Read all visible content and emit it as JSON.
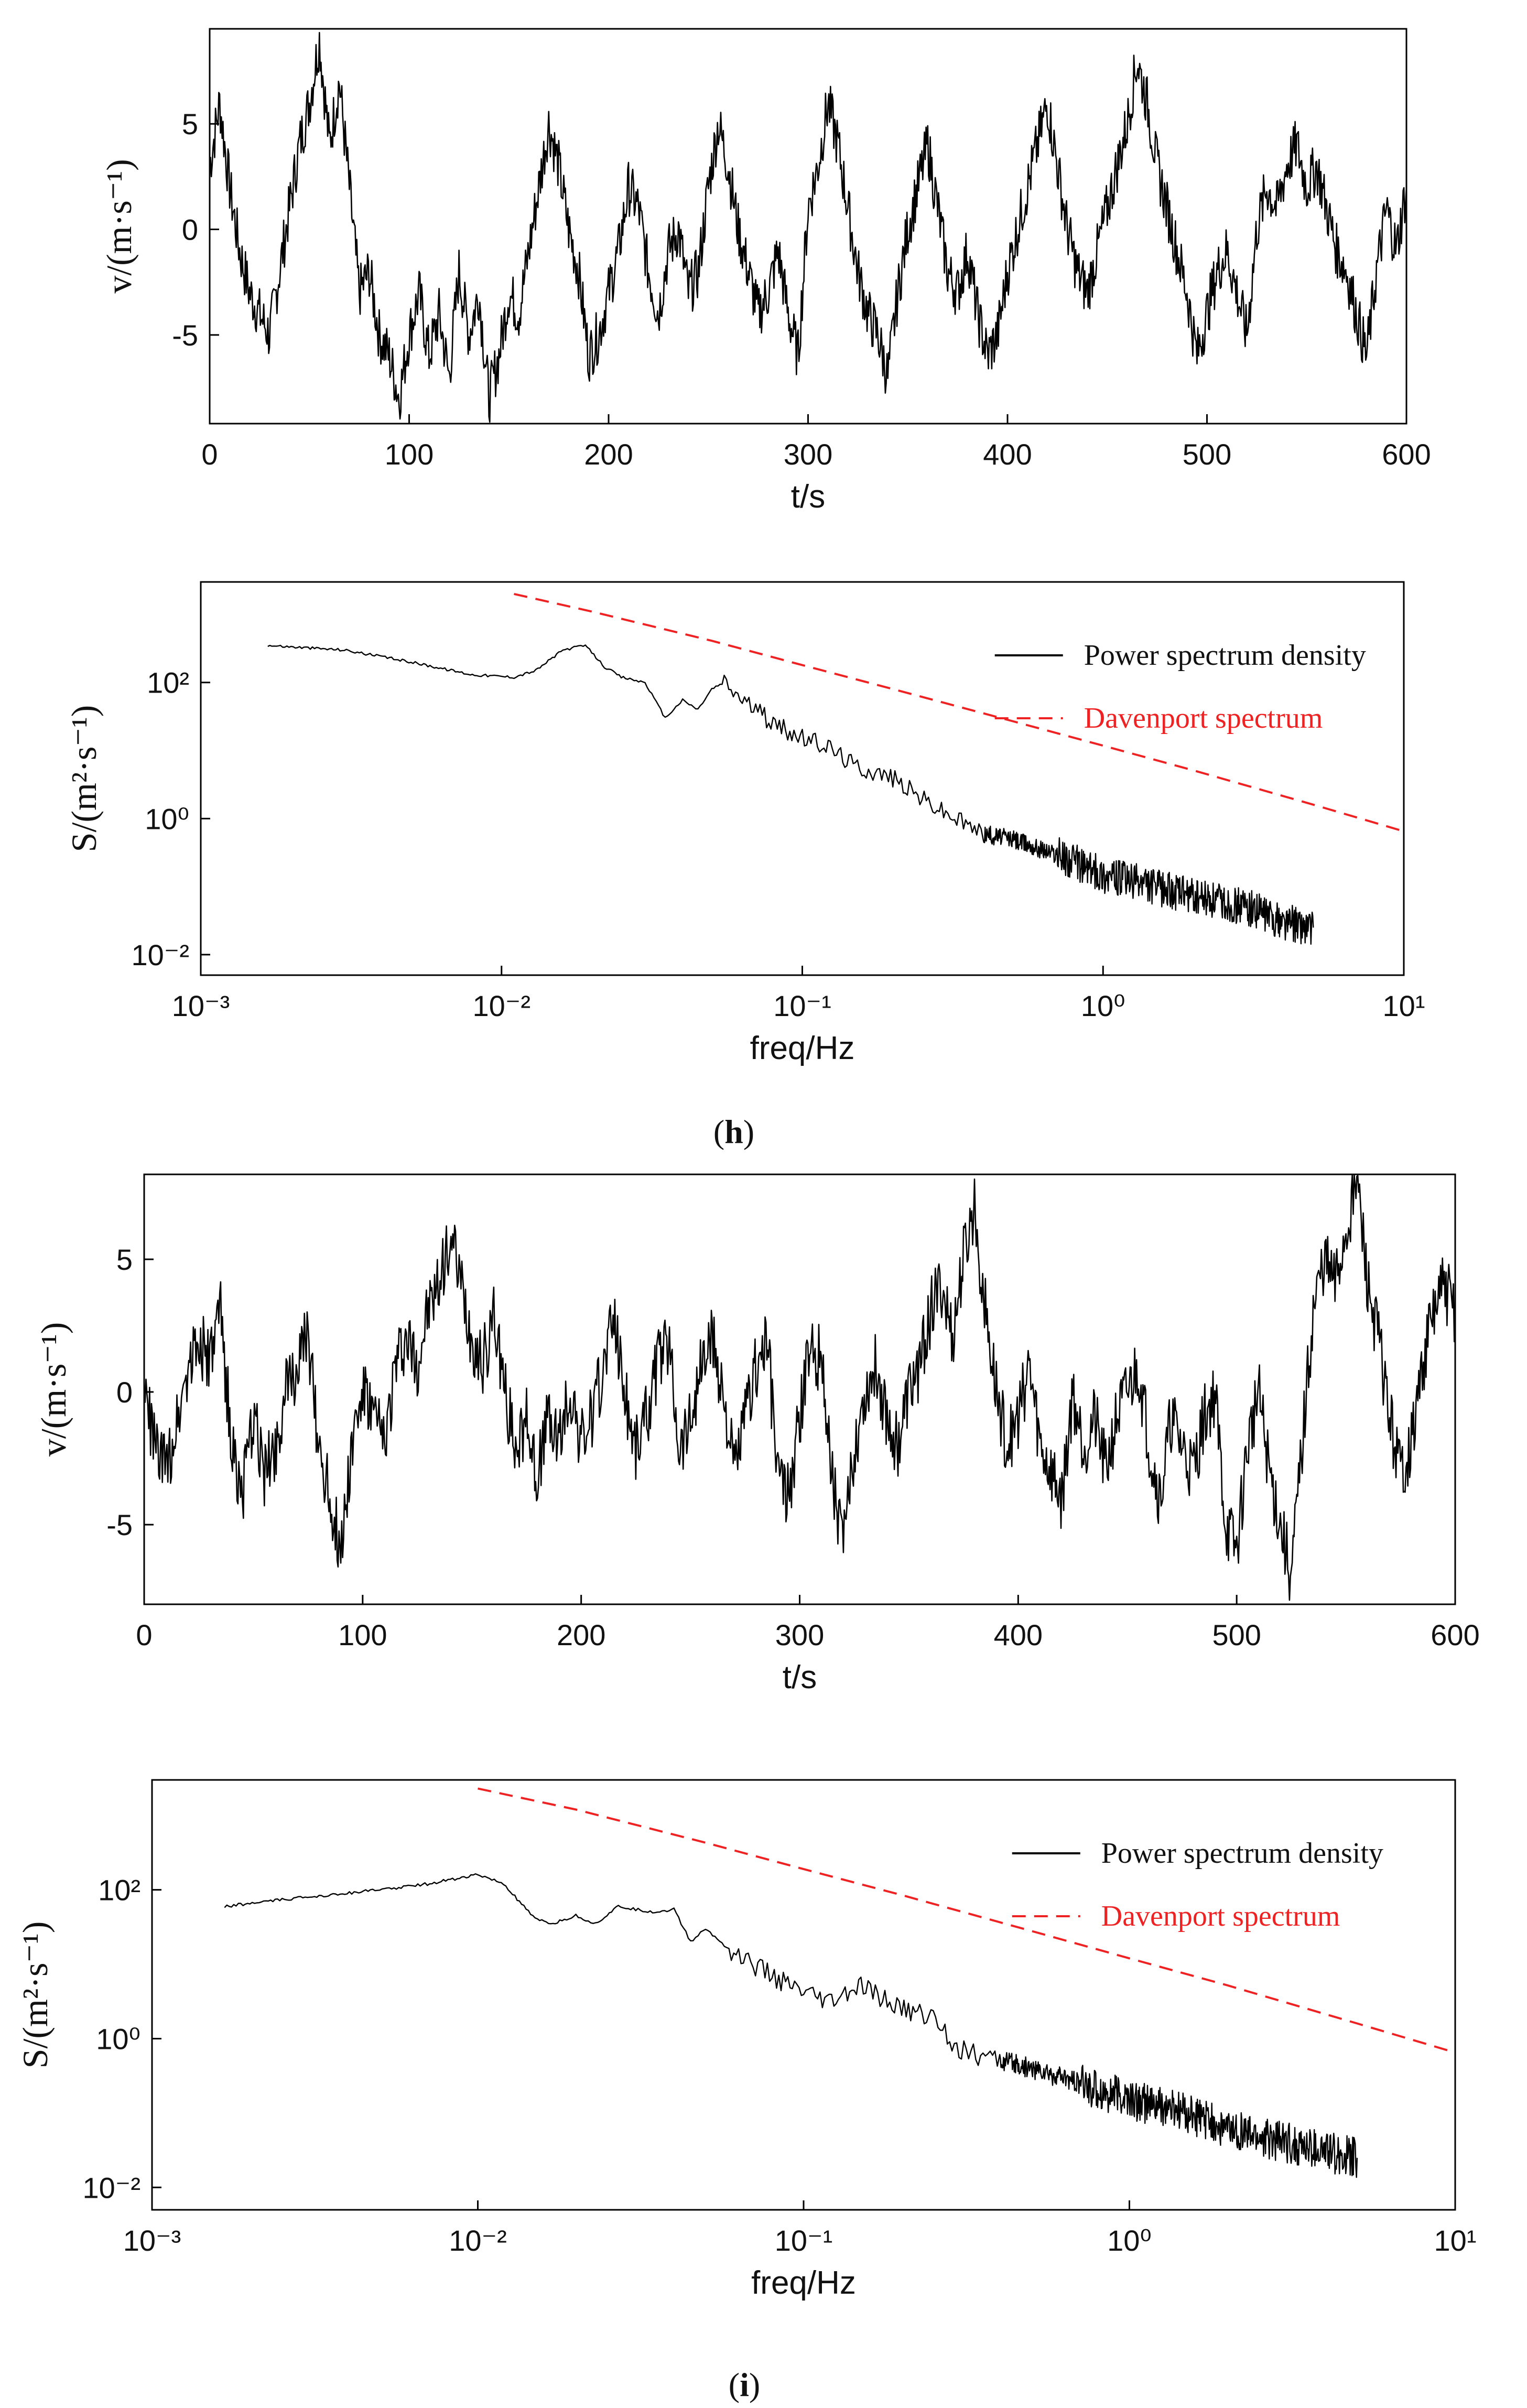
{
  "chart_data": [
    {
      "panel": "h",
      "type": "line",
      "xlabel": "t/s",
      "ylabel": "v/(m·s⁻¹)",
      "xlim": [
        0,
        600
      ],
      "ylim": [
        -9.2,
        9.5
      ],
      "xticks": [
        0,
        100,
        200,
        300,
        400,
        500,
        600
      ],
      "yticks": [
        -5,
        0,
        5
      ],
      "series": [
        {
          "color": "#000000",
          "x": [
            0,
            5,
            10,
            15,
            20,
            25,
            30,
            35,
            40,
            45,
            50,
            55,
            60,
            65,
            70,
            75,
            80,
            85,
            90,
            95,
            100,
            105,
            110,
            115,
            120,
            125,
            130,
            135,
            140,
            145,
            150,
            155,
            160,
            165,
            170,
            175,
            180,
            185,
            190,
            195,
            200,
            205,
            210,
            215,
            220,
            225,
            230,
            235,
            240,
            245,
            250,
            255,
            260,
            265,
            270,
            275,
            280,
            285,
            290,
            295,
            300,
            305,
            310,
            315,
            320,
            325,
            330,
            335,
            340,
            345,
            350,
            355,
            360,
            365,
            370,
            375,
            380,
            385,
            390,
            395,
            400,
            405,
            410,
            415,
            420,
            425,
            430,
            435,
            440,
            445,
            450,
            455,
            460,
            465,
            470,
            475,
            480,
            485,
            490,
            495,
            500,
            505,
            510,
            515,
            520,
            525,
            530,
            535,
            540,
            545,
            550,
            555,
            560,
            565,
            570,
            575,
            580,
            585,
            590,
            595,
            600
          ],
          "y": [
            3,
            6,
            2,
            -1,
            -3,
            -4,
            -5,
            -2,
            1,
            4,
            6,
            9,
            4,
            7,
            2,
            -3,
            -2,
            -5,
            -6,
            -8,
            -5,
            -3,
            -6,
            -4,
            -7,
            -2,
            -5,
            -3,
            -8,
            -6,
            -3,
            -4,
            -1,
            2,
            5,
            3,
            0,
            -2,
            -6,
            -5,
            -3,
            -1,
            2,
            1,
            -2,
            -4,
            -1,
            0,
            -3,
            -2,
            2,
            5,
            3,
            0,
            -2,
            -4,
            -3,
            -1,
            -4,
            -6,
            1,
            3,
            6,
            4,
            1,
            -2,
            -4,
            -5,
            -7,
            -3,
            0,
            2,
            4,
            1,
            -2,
            -3,
            -1,
            -4,
            -6,
            -5,
            -2,
            0,
            2,
            4,
            6,
            3,
            0,
            -2,
            -3,
            -1,
            1,
            3,
            5,
            8,
            6,
            3,
            1,
            -1,
            -3,
            -6,
            -4,
            -2,
            -1,
            -3,
            -5,
            0,
            2,
            1,
            3,
            4,
            2,
            3,
            1,
            -1,
            -2,
            -4,
            -6,
            -2,
            1,
            -1,
            2
          ]
        }
      ]
    },
    {
      "panel": "h",
      "type": "line",
      "xlabel": "freq/Hz",
      "ylabel": "S/(m²·s⁻¹)",
      "xscale": "log",
      "yscale": "log",
      "xlim": [
        0.001,
        10
      ],
      "ylim": [
        0.005,
        3000
      ],
      "xticks": [
        "10⁻³",
        "10⁻²",
        "10⁻¹",
        "10⁰",
        "10¹"
      ],
      "yticks": [
        "10⁻²",
        "10⁰",
        "10²"
      ],
      "legend": "top-right",
      "series": [
        {
          "name": "Power spectrum density",
          "color": "#000000",
          "style": "solid",
          "x": [
            0.00167,
            0.003,
            0.005,
            0.008,
            0.011,
            0.013,
            0.016,
            0.019,
            0.022,
            0.025,
            0.03,
            0.035,
            0.04,
            0.045,
            0.05,
            0.055,
            0.06,
            0.07,
            0.08,
            0.1,
            0.12,
            0.15,
            0.2,
            0.25,
            0.3,
            0.4,
            0.5,
            0.7,
            1.0,
            1.5,
            2.0,
            3.0,
            4.0,
            5.0
          ],
          "y": [
            350,
            300,
            200,
            130,
            120,
            150,
            300,
            350,
            170,
            120,
            100,
            30,
            55,
            40,
            80,
            100,
            70,
            40,
            25,
            15,
            12,
            6,
            4,
            2,
            1.2,
            0.6,
            0.5,
            0.3,
            0.15,
            0.1,
            0.07,
            0.05,
            0.03,
            0.025
          ]
        },
        {
          "name": "Davenport spectrum",
          "color": "#ee2222",
          "style": "dashed",
          "x": [
            0.011,
            0.02,
            0.05,
            0.1,
            0.2,
            0.5,
            1.0,
            2.0,
            5.0,
            10.0
          ],
          "y": [
            2000,
            1100,
            410,
            180,
            80,
            27,
            11.8,
            5.1,
            1.6,
            0.65
          ]
        }
      ]
    },
    {
      "panel": "i",
      "type": "line",
      "xlabel": "t/s",
      "ylabel": "v/(m·s⁻¹)",
      "xlim": [
        0,
        600
      ],
      "ylim": [
        -8,
        8.2
      ],
      "xticks": [
        0,
        100,
        200,
        300,
        400,
        500,
        600
      ],
      "yticks": [
        -5,
        0,
        5
      ],
      "series": [
        {
          "color": "#000000",
          "x": [
            0,
            5,
            10,
            15,
            20,
            25,
            30,
            35,
            40,
            45,
            50,
            55,
            60,
            65,
            70,
            75,
            80,
            85,
            90,
            95,
            100,
            105,
            110,
            115,
            120,
            125,
            130,
            135,
            140,
            145,
            150,
            155,
            160,
            165,
            170,
            175,
            180,
            185,
            190,
            195,
            200,
            205,
            210,
            215,
            220,
            225,
            230,
            235,
            240,
            245,
            250,
            255,
            260,
            265,
            270,
            275,
            280,
            285,
            290,
            295,
            300,
            305,
            310,
            315,
            320,
            325,
            330,
            335,
            340,
            345,
            350,
            355,
            360,
            365,
            370,
            375,
            380,
            385,
            390,
            395,
            400,
            405,
            410,
            415,
            420,
            425,
            430,
            435,
            440,
            445,
            450,
            455,
            460,
            465,
            470,
            475,
            480,
            485,
            490,
            495,
            500,
            505,
            510,
            515,
            520,
            525,
            530,
            535,
            540,
            545,
            550,
            555,
            560,
            565,
            570,
            575,
            580,
            585,
            590,
            595,
            600
          ],
          "y": [
            0,
            -2,
            -3,
            -1,
            1,
            2,
            1,
            3,
            -2,
            -4,
            -1,
            -3,
            -2,
            0,
            1,
            2,
            -2,
            -4,
            -6,
            -2,
            0,
            -1,
            -2,
            1,
            2,
            1,
            3,
            4,
            6,
            4,
            2,
            1,
            3,
            0,
            -2,
            -1,
            -3,
            -1,
            -2,
            0,
            -2,
            -1,
            1,
            3,
            0,
            -2,
            -1,
            1,
            2,
            -2,
            -1,
            1,
            2,
            0,
            -3,
            -1,
            1,
            2,
            -3,
            -4,
            -1,
            2,
            1,
            -3,
            -6,
            -2,
            0,
            1,
            -1,
            -2,
            0,
            1,
            3,
            4,
            2,
            5,
            7,
            3,
            0,
            -2,
            -1,
            1,
            -2,
            -3,
            -4,
            0,
            -2,
            -1,
            -3,
            -1,
            0,
            1,
            -2,
            -4,
            -1,
            -2,
            -3,
            -1,
            0,
            -5,
            -6,
            -2,
            0,
            -3,
            -5,
            -7,
            -2,
            3,
            5,
            4,
            6,
            8,
            4,
            2,
            -1,
            -3,
            -2,
            1,
            3,
            4,
            3
          ]
        }
      ]
    },
    {
      "panel": "i",
      "type": "line",
      "xlabel": "freq/Hz",
      "ylabel": "S/(m²·s⁻¹)",
      "xscale": "log",
      "yscale": "log",
      "xlim": [
        0.001,
        10
      ],
      "ylim": [
        0.005,
        3000
      ],
      "xticks": [
        "10⁻³",
        "10⁻²",
        "10⁻¹",
        "10⁰",
        "10¹"
      ],
      "yticks": [
        "10⁻²",
        "10⁰",
        "10²"
      ],
      "legend": "top-right",
      "series": [
        {
          "name": "Power spectrum density",
          "color": "#000000",
          "style": "solid",
          "x": [
            0.00167,
            0.003,
            0.005,
            0.007,
            0.01,
            0.012,
            0.015,
            0.017,
            0.02,
            0.023,
            0.027,
            0.03,
            0.035,
            0.04,
            0.045,
            0.05,
            0.06,
            0.07,
            0.08,
            0.1,
            0.12,
            0.15,
            0.2,
            0.25,
            0.3,
            0.4,
            0.5,
            0.7,
            1.0,
            1.5,
            2.0,
            3.0,
            4.0,
            5.0
          ],
          "y": [
            60,
            80,
            100,
            120,
            160,
            120,
            40,
            35,
            45,
            35,
            60,
            55,
            50,
            55,
            20,
            30,
            15,
            10,
            7,
            4,
            3,
            5,
            2.5,
            2,
            0.7,
            0.5,
            0.4,
            0.25,
            0.15,
            0.1,
            0.06,
            0.04,
            0.03,
            0.025
          ]
        },
        {
          "name": "Davenport spectrum",
          "color": "#ee2222",
          "style": "dashed",
          "x": [
            0.01,
            0.02,
            0.05,
            0.1,
            0.2,
            0.5,
            1.0,
            2.0,
            5.0,
            10.0
          ],
          "y": [
            2300,
            1200,
            430,
            190,
            85,
            28,
            12,
            5.2,
            1.6,
            0.65
          ]
        }
      ]
    }
  ],
  "captions": {
    "h_open": "(",
    "h_letter": "h",
    "h_close": ")",
    "i_open": "(",
    "i_letter": "i",
    "i_close": ")"
  },
  "legend": {
    "psd": "Power spectrum density",
    "davenport": "Davenport spectrum"
  },
  "colors": {
    "psd": "#000000",
    "davenport": "#ee2222"
  }
}
